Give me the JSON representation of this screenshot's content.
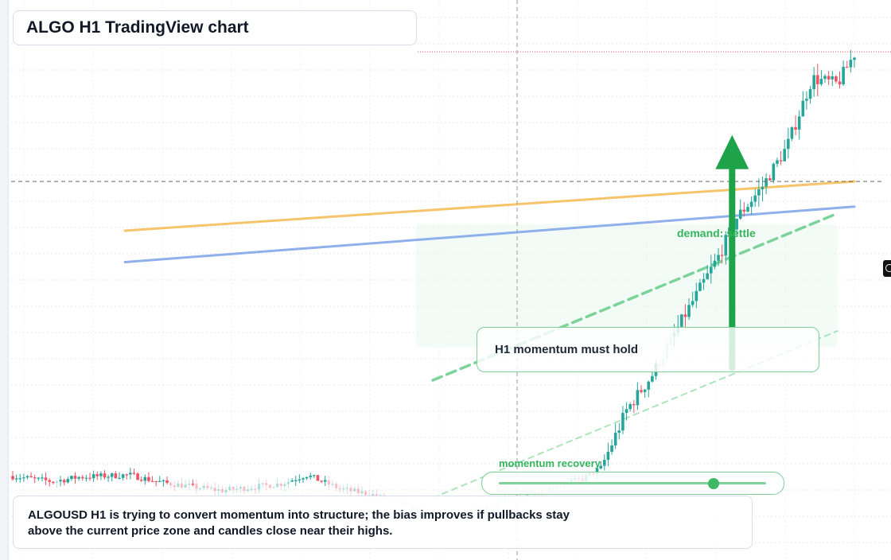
{
  "title": "ALGO H1 TradingView chart",
  "callout": {
    "text": "H1 momentum must hold"
  },
  "annotations": {
    "demand": "demand: settle",
    "momentum": "momentum recovery"
  },
  "slider": {
    "value": 0.8
  },
  "summary": {
    "line1": "ALGOUSD H1 is trying to convert momentum into structure; the bias improves if pullbacks stay",
    "line2": "above the current price zone and candles close near their highs."
  },
  "colors": {
    "bull": "#26a69a",
    "bear": "#ef5365",
    "orange_line": "#f6c46b",
    "blue_line": "#8fb0ea",
    "green_accent": "#1fa34a"
  },
  "chart_data": {
    "type": "candlestick",
    "y_range": [
      0,
      100
    ],
    "x_range": [
      0,
      1.0
    ],
    "current_price": 67.6,
    "high_marker": 90.6,
    "seed": 7,
    "path": [
      [
        0.0,
        15.0
      ],
      [
        0.05,
        14.0
      ],
      [
        0.08,
        14.8
      ],
      [
        0.14,
        15.2
      ],
      [
        0.18,
        13.8
      ],
      [
        0.25,
        12.4
      ],
      [
        0.32,
        13.6
      ],
      [
        0.35,
        15.2
      ],
      [
        0.39,
        12.7
      ],
      [
        0.43,
        11.6
      ],
      [
        0.48,
        8.8
      ],
      [
        0.52,
        7.2
      ],
      [
        0.58,
        10.5
      ],
      [
        0.64,
        13.0
      ],
      [
        0.68,
        14.6
      ],
      [
        0.7,
        16.5
      ],
      [
        0.73,
        26.8
      ],
      [
        0.76,
        33.0
      ],
      [
        0.8,
        44.0
      ],
      [
        0.84,
        54.5
      ],
      [
        0.86,
        61.0
      ],
      [
        0.89,
        66.5
      ],
      [
        0.92,
        73.8
      ],
      [
        0.95,
        86.0
      ],
      [
        0.98,
        85.0
      ],
      [
        1.0,
        90.4
      ]
    ],
    "lines": [
      {
        "name": "",
        "style": "solid",
        "from": [
          0.135,
          58.8
        ],
        "to": [
          1.0,
          67.6
        ]
      },
      {
        "name": "",
        "style": "solid",
        "from": [
          0.135,
          53.2
        ],
        "to": [
          1.0,
          63.1
        ]
      },
      {
        "name": "",
        "style": "dashed",
        "from": [
          0.5,
          32.1
        ],
        "to": [
          0.98,
          61.9
        ]
      },
      {
        "name": "",
        "style": "dashed-light",
        "from": [
          0.5,
          11.1
        ],
        "to": [
          0.98,
          40.9
        ]
      }
    ],
    "zones": [
      {
        "from": [
          0.48,
          60.0
        ],
        "to": [
          0.98,
          38.0
        ]
      }
    ],
    "arrow": {
      "x": 0.855,
      "from": 34.3,
      "to": 75.9
    },
    "grid": true
  }
}
